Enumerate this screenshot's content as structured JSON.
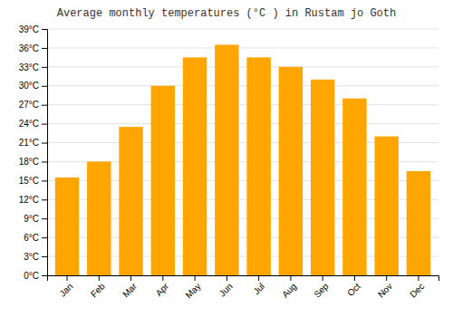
{
  "chart_data": {
    "type": "bar",
    "title": "Average monthly temperatures (°C ) in Rustam jo Goth",
    "categories": [
      "Jan",
      "Feb",
      "Mar",
      "Apr",
      "May",
      "Jun",
      "Jul",
      "Aug",
      "Sep",
      "Oct",
      "Nov",
      "Dec"
    ],
    "values": [
      15.5,
      18.0,
      23.5,
      30.0,
      34.5,
      36.5,
      34.5,
      33.0,
      31.0,
      28.0,
      22.0,
      16.5
    ],
    "color": "#FFA500",
    "ylim": [
      0,
      39
    ],
    "yticks": [
      {
        "value": 0,
        "label": "0°C"
      },
      {
        "value": 3,
        "label": "3°C"
      },
      {
        "value": 6,
        "label": "6°C"
      },
      {
        "value": 9,
        "label": "9°C"
      },
      {
        "value": 12,
        "label": "12°C"
      },
      {
        "value": 15,
        "label": "15°C"
      },
      {
        "value": 18,
        "label": "18°C"
      },
      {
        "value": 21,
        "label": "21°C"
      },
      {
        "value": 24,
        "label": "24°C"
      },
      {
        "value": 27,
        "label": "27°C"
      },
      {
        "value": 30,
        "label": "30°C"
      },
      {
        "value": 33,
        "label": "33°C"
      },
      {
        "value": 36,
        "label": "36°C"
      },
      {
        "value": 39,
        "label": "39°C"
      }
    ],
    "grid": true
  }
}
